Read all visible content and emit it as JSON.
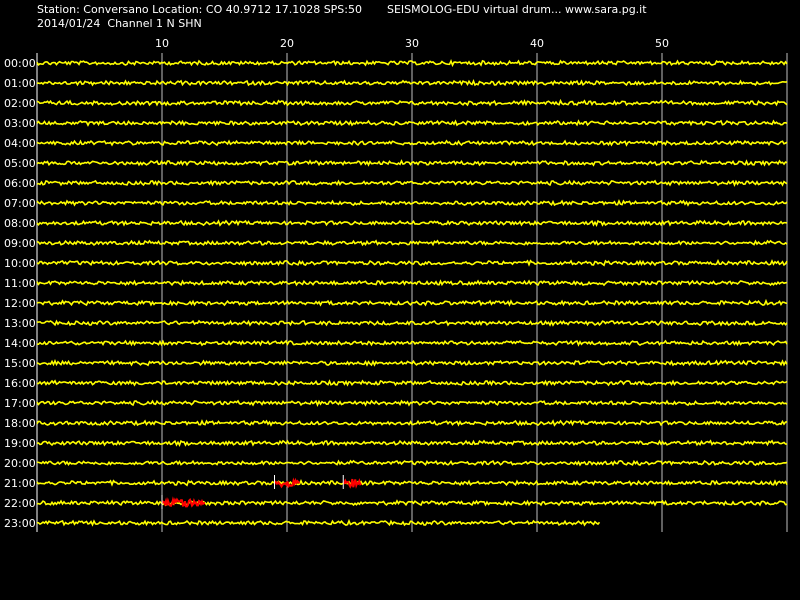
{
  "header": {
    "station_line": "Station: Conversano Location: CO 40.9712 17.1028 SPS:50",
    "title": "SEISMOLOG-EDU virtual drum... www.sara.pg.it",
    "date_line": "2014/01/24  Channel 1 N SHN"
  },
  "drum": {
    "minute_ticks": [
      "10",
      "20",
      "30",
      "40",
      "50"
    ],
    "hours": [
      "00:00",
      "01:00",
      "02:00",
      "03:00",
      "04:00",
      "05:00",
      "06:00",
      "07:00",
      "08:00",
      "09:00",
      "10:00",
      "11:00",
      "12:00",
      "13:00",
      "14:00",
      "15:00",
      "16:00",
      "17:00",
      "18:00",
      "19:00",
      "20:00",
      "21:00",
      "22:00",
      "23:00"
    ],
    "last_trace_end_minute": 45,
    "trace_color": "#ffff00",
    "event_color": "#ff0000",
    "grid_color": "#c0c0c0",
    "events": [
      {
        "hour": 21,
        "start_minute": 19,
        "end_minute": 21
      },
      {
        "hour": 21,
        "start_minute": 24.5,
        "end_minute": 26
      },
      {
        "hour": 22,
        "start_minute": 10,
        "end_minute": 13.5
      }
    ]
  }
}
